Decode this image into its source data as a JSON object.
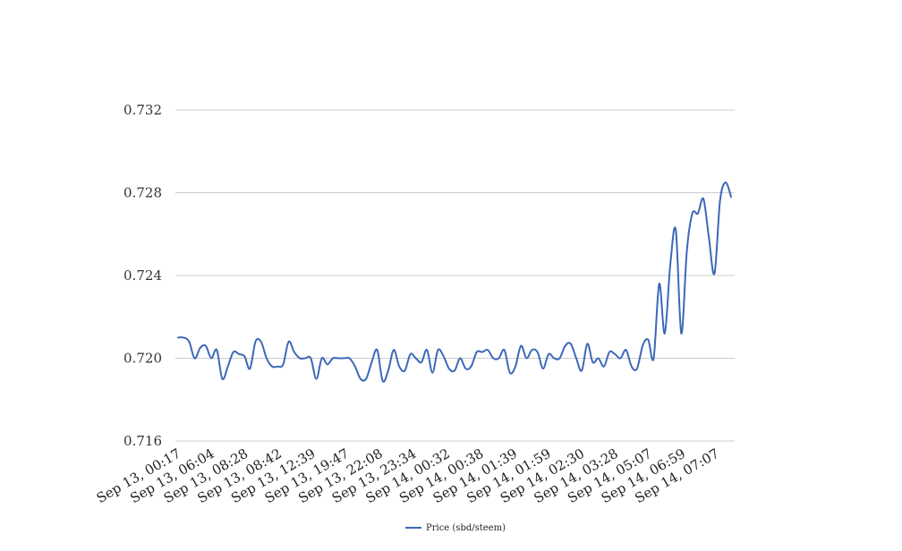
{
  "chart_data": {
    "type": "line",
    "title": "",
    "xlabel": "",
    "ylabel": "",
    "ylim": [
      0.716,
      0.732
    ],
    "yticks": [
      0.716,
      0.72,
      0.724,
      0.728,
      0.732
    ],
    "ytick_labels": [
      "0.716",
      "0.720",
      "0.724",
      "0.728",
      "0.732"
    ],
    "grid": true,
    "legend_position": "bottom",
    "x_tick_labels": [
      "Sep 13, 00:17",
      "Sep 13, 06:04",
      "Sep 13, 08:28",
      "Sep 13, 08:42",
      "Sep 13, 12:39",
      "Sep 13, 19:47",
      "Sep 13, 22:08",
      "Sep 13, 23:34",
      "Sep 14, 00:32",
      "Sep 14, 00:38",
      "Sep 14, 01:39",
      "Sep 14, 01:59",
      "Sep 14, 02:30",
      "Sep 14, 03:28",
      "Sep 14, 05:07",
      "Sep 14, 06:59",
      "Sep 14, 07:07"
    ],
    "series": [
      {
        "name": "Price (sbd/steem)",
        "color": "#3c68b8",
        "values": [
          0.721,
          0.721,
          0.7208,
          0.72,
          0.7205,
          0.7206,
          0.72,
          0.7204,
          0.719,
          0.7196,
          0.7203,
          0.7202,
          0.7201,
          0.7195,
          0.7208,
          0.7208,
          0.72,
          0.7196,
          0.7196,
          0.7197,
          0.7208,
          0.7203,
          0.72,
          0.72,
          0.72,
          0.719,
          0.72,
          0.7197,
          0.72,
          0.72,
          0.72,
          0.72,
          0.7196,
          0.719,
          0.719,
          0.7198,
          0.7204,
          0.7189,
          0.7194,
          0.7204,
          0.7196,
          0.7194,
          0.7202,
          0.72,
          0.7198,
          0.7204,
          0.7193,
          0.7204,
          0.7201,
          0.7195,
          0.7194,
          0.72,
          0.7195,
          0.7196,
          0.7203,
          0.7203,
          0.7204,
          0.72,
          0.72,
          0.7204,
          0.7193,
          0.7196,
          0.7206,
          0.72,
          0.7204,
          0.7203,
          0.7195,
          0.7202,
          0.72,
          0.72,
          0.7206,
          0.7207,
          0.72,
          0.7194,
          0.7207,
          0.7198,
          0.72,
          0.7196,
          0.7203,
          0.7202,
          0.72,
          0.7204,
          0.7196,
          0.7195,
          0.7206,
          0.7209,
          0.72,
          0.7236,
          0.7212,
          0.7245,
          0.7262,
          0.7212,
          0.7252,
          0.727,
          0.727,
          0.7277,
          0.7258,
          0.7241,
          0.7276,
          0.7285,
          0.7278
        ]
      }
    ]
  }
}
